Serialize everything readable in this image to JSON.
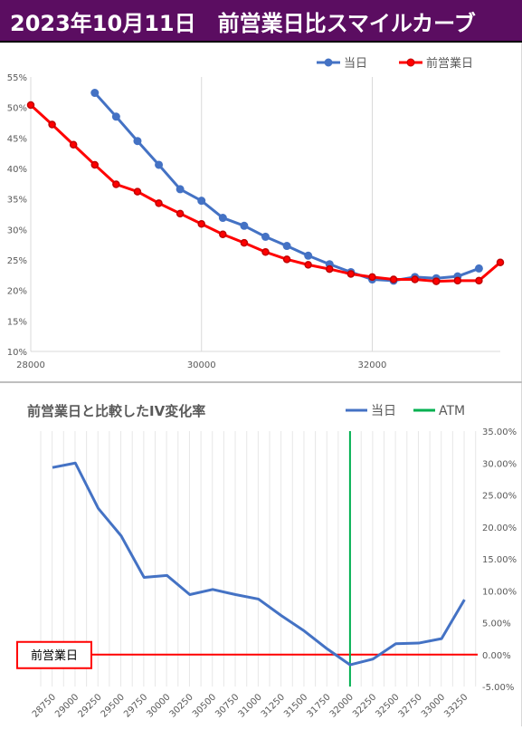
{
  "title": "2023年10月11日　前営業日比スマイルカーブ",
  "colors": {
    "banner": "#5b0d61",
    "today": "#4472c4",
    "prev": "#ff0000",
    "atm": "#00b050",
    "iv_line": "#4472c4"
  },
  "chart_data": [
    {
      "type": "line",
      "title": "",
      "xlabel": "",
      "ylabel": "",
      "xlim": [
        28000,
        33500
      ],
      "ylim": [
        10,
        55
      ],
      "x_ticks": [
        "28000",
        "30000",
        "32000"
      ],
      "y_ticks": [
        "10%",
        "15%",
        "20%",
        "25%",
        "30%",
        "35%",
        "40%",
        "45%",
        "50%",
        "55%"
      ],
      "legend_position": "top-right",
      "grid": "vertical",
      "series": [
        {
          "name": "当日",
          "color": "#4472c4",
          "x": [
            28750,
            29000,
            29250,
            29500,
            29750,
            30000,
            30250,
            30500,
            30750,
            31000,
            31250,
            31500,
            31750,
            32000,
            32250,
            32500,
            32750,
            33000,
            33250
          ],
          "y": [
            52.4,
            48.5,
            44.5,
            40.6,
            36.6,
            34.7,
            31.9,
            30.6,
            28.8,
            27.3,
            25.7,
            24.3,
            23.0,
            21.8,
            21.6,
            22.2,
            22.0,
            22.3,
            23.6
          ]
        },
        {
          "name": "前営業日",
          "color": "#ff0000",
          "x": [
            28000,
            28250,
            28500,
            28750,
            29000,
            29250,
            29500,
            29750,
            30000,
            30250,
            30500,
            30750,
            31000,
            31250,
            31500,
            31750,
            32000,
            32250,
            32500,
            32750,
            33000,
            33250,
            33500
          ],
          "y": [
            50.4,
            47.2,
            43.9,
            40.6,
            37.4,
            36.2,
            34.3,
            32.6,
            30.9,
            29.2,
            27.8,
            26.3,
            25.1,
            24.2,
            23.5,
            22.7,
            22.2,
            21.8,
            21.8,
            21.5,
            21.6,
            21.6,
            24.6
          ]
        }
      ]
    },
    {
      "type": "line",
      "title": "前営業日と比較したIV変化率",
      "xlabel": "",
      "ylabel": "",
      "ylim": [
        -5,
        35
      ],
      "categories": [
        "28750",
        "29000",
        "29250",
        "29500",
        "29750",
        "30000",
        "30250",
        "30500",
        "30750",
        "31000",
        "31250",
        "31500",
        "31750",
        "32000",
        "32250",
        "32500",
        "32750",
        "33000",
        "33250"
      ],
      "y_ticks": [
        "-5.00%",
        "0.00%",
        "5.00%",
        "10.00%",
        "15.00%",
        "20.00%",
        "25.00%",
        "30.00%",
        "35.00%"
      ],
      "legend_position": "top-right",
      "grid": "vertical",
      "series": [
        {
          "name": "当日",
          "color": "#4472c4",
          "values": [
            29.3,
            30.0,
            22.9,
            18.6,
            12.1,
            12.4,
            9.4,
            10.2,
            9.4,
            8.7,
            6.1,
            3.7,
            0.9,
            -1.6,
            -0.7,
            1.7,
            1.8,
            2.5,
            8.6
          ]
        }
      ],
      "atm": {
        "label": "ATM",
        "x": "32000"
      },
      "baseline": {
        "label": "前営業日",
        "value": 0
      }
    }
  ]
}
